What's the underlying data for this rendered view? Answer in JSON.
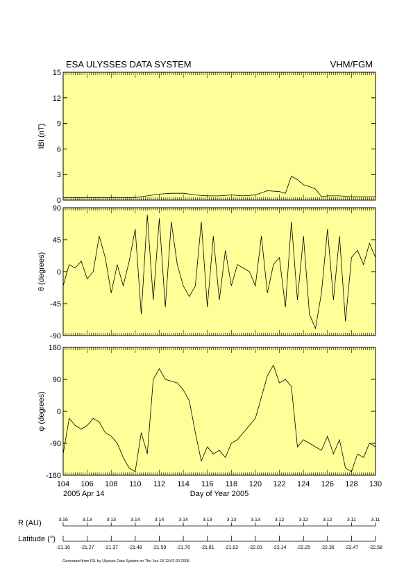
{
  "header": {
    "title": "ESA ULYSSES DATA SYSTEM",
    "instrument": "VHM/FGM"
  },
  "x_axis": {
    "ticks": [
      "104",
      "106",
      "108",
      "110",
      "112",
      "114",
      "116",
      "118",
      "120",
      "122",
      "124",
      "126",
      "128",
      "130"
    ],
    "start_date": "2005 Apr 14",
    "label": "Day of Year 2005"
  },
  "footer": {
    "r_label": "R (AU)",
    "r_values": [
      "3.16",
      "3.13",
      "3.13",
      "3.14",
      "3.14",
      "3.14",
      "3.13",
      "3.13",
      "3.13",
      "3.12",
      "3.12",
      "3.12",
      "3.11",
      "3.11"
    ],
    "lat_label": "Latitude (°)",
    "lat_values": [
      "-21.16",
      "-21.27",
      "-21.37",
      "-21.48",
      "-21.59",
      "-21.70",
      "-21.81",
      "-21.92",
      "-22.03",
      "-22.14",
      "-22.25",
      "-22.36",
      "-22.47",
      "-22.58"
    ],
    "generated": "Generated from IDL by Ulysses Data System on Thu Jun 23 12:02:20 2005"
  },
  "colors": {
    "panel_bg": "#ffff99",
    "line": "#000000"
  },
  "chart_data": [
    {
      "type": "line",
      "ylabel": "IBI (nT)",
      "xlim": [
        104,
        130
      ],
      "ylim": [
        0,
        15
      ],
      "yticks": [
        "0",
        "3",
        "6",
        "9",
        "12",
        "15"
      ],
      "x": [
        104,
        106,
        108,
        110,
        111,
        112,
        113,
        114,
        115,
        116,
        117,
        118,
        119,
        120,
        121,
        122,
        122.5,
        123,
        123.5,
        124,
        124.5,
        125,
        125.5,
        126,
        127,
        128,
        129,
        130
      ],
      "values": [
        0.3,
        0.3,
        0.3,
        0.3,
        0.5,
        0.7,
        0.8,
        0.8,
        0.6,
        0.5,
        0.5,
        0.6,
        0.5,
        0.6,
        1.1,
        1.0,
        0.8,
        2.8,
        2.4,
        1.8,
        1.6,
        1.3,
        0.4,
        0.5,
        0.5,
        0.4,
        0.4,
        0.4
      ]
    },
    {
      "type": "line",
      "ylabel": "θ (degrees)",
      "xlim": [
        104,
        130
      ],
      "ylim": [
        -90,
        90
      ],
      "yticks": [
        "-90",
        "-45",
        "0",
        "45",
        "90"
      ],
      "x": [
        104,
        104.5,
        105,
        105.5,
        106,
        106.5,
        107,
        107.5,
        108,
        108.5,
        109,
        109.5,
        110,
        110.5,
        111,
        111.5,
        112,
        112.5,
        113,
        113.5,
        114,
        114.5,
        115,
        115.5,
        116,
        116.5,
        117,
        117.5,
        118,
        118.5,
        119,
        119.5,
        120,
        120.5,
        121,
        121.5,
        122,
        122.5,
        123,
        123.5,
        124,
        124.5,
        125,
        125.5,
        126,
        126.5,
        127,
        127.5,
        128,
        128.5,
        129,
        129.5,
        130
      ],
      "values": [
        -20,
        10,
        5,
        15,
        -10,
        0,
        50,
        20,
        -30,
        10,
        -20,
        15,
        60,
        -60,
        80,
        -40,
        75,
        -50,
        70,
        10,
        -20,
        -35,
        -20,
        70,
        -50,
        50,
        -40,
        30,
        -20,
        10,
        5,
        0,
        -20,
        50,
        -30,
        10,
        20,
        -50,
        70,
        -40,
        50,
        -60,
        -80,
        -30,
        60,
        -40,
        50,
        -70,
        20,
        30,
        10,
        40,
        20
      ]
    },
    {
      "type": "line",
      "ylabel": "φ (degrees)",
      "xlim": [
        104,
        130
      ],
      "ylim": [
        -180,
        180
      ],
      "yticks": [
        "-180",
        "-90",
        "0",
        "90",
        "180"
      ],
      "x": [
        104,
        104.5,
        105,
        105.5,
        106,
        106.5,
        107,
        107.5,
        108,
        108.5,
        109,
        109.5,
        110,
        110.5,
        111,
        111.5,
        112,
        112.5,
        113,
        113.5,
        114,
        114.5,
        115,
        115.5,
        116,
        116.5,
        117,
        117.5,
        118,
        118.5,
        119,
        119.5,
        120,
        120.5,
        121,
        121.5,
        122,
        122.5,
        123,
        123.5,
        124,
        124.5,
        125,
        125.5,
        126,
        126.5,
        127,
        127.5,
        128,
        128.5,
        129,
        129.5,
        130
      ],
      "values": [
        -120,
        -20,
        -40,
        -50,
        -40,
        -20,
        -30,
        -60,
        -70,
        -90,
        -130,
        -160,
        -170,
        -60,
        -120,
        90,
        120,
        90,
        85,
        80,
        60,
        30,
        -60,
        -140,
        -100,
        -120,
        -110,
        -130,
        -90,
        -80,
        -60,
        -40,
        -20,
        40,
        100,
        130,
        80,
        90,
        70,
        -100,
        -80,
        -90,
        -100,
        -110,
        -70,
        -120,
        -80,
        -160,
        -170,
        -120,
        -130,
        -90,
        -100
      ]
    }
  ]
}
